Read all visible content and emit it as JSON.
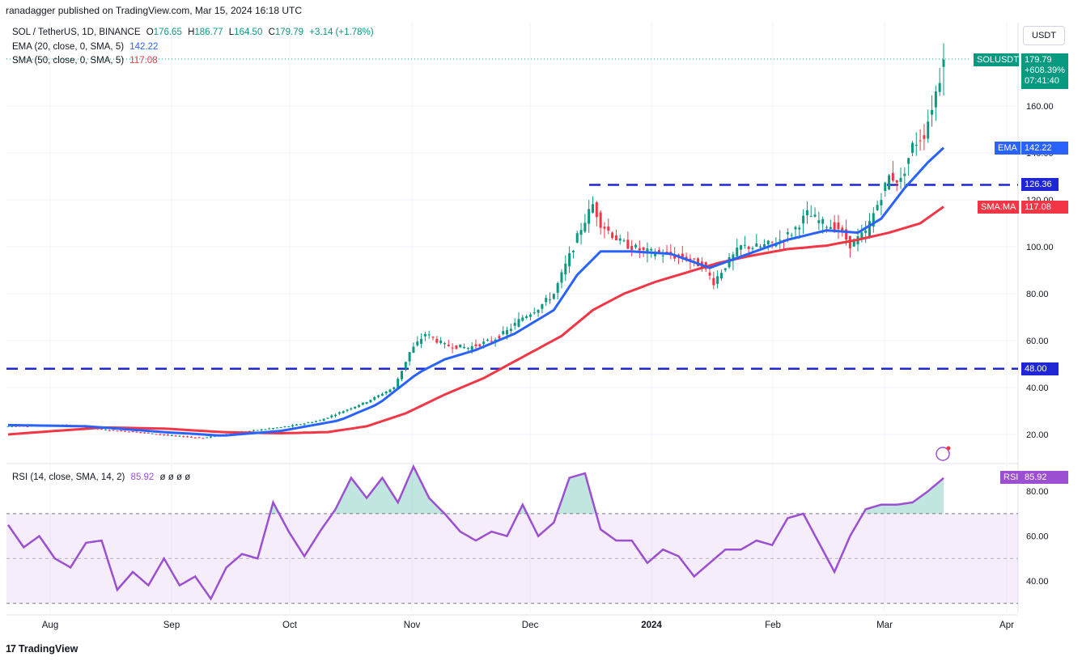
{
  "header": {
    "published": "ranadagger published on TradingView.com, Mar 15, 2024 16:18 UTC"
  },
  "legend": {
    "symbol": "SOL / TetherUS, 1D, BINANCE",
    "ohlc": {
      "O": "176.65",
      "H": "186.77",
      "L": "164.50",
      "C": "179.79",
      "chg": "+3.14 (+1.78%)"
    },
    "ema_label": "EMA (20, close, 0, SMA, 5)",
    "ema_value": "142.22",
    "sma_label": "SMA (50, close, 0, SMA, 5)",
    "sma_value": "117.08",
    "rsi_label": "RSI (14, close, SMA, 14, 2)",
    "rsi_value": "85.92",
    "rsi_extra": "ø ø ø ø"
  },
  "unit_button": "USDT",
  "footer": {
    "brand": "TradingView",
    "logo_text": "17"
  },
  "price_tags": {
    "symbol": "SOLUSDT",
    "price": "179.79",
    "change": "+608.39%",
    "timer": "07:41:40",
    "ema_tag": "EMA",
    "ema": "142.22",
    "level_high": "126.36",
    "sma_tag": "SMA:MA",
    "sma": "117.08",
    "level_low": "48.00",
    "rsi_tag": "RSI",
    "rsi": "85.92"
  },
  "colors": {
    "up": "#089981",
    "down": "#f23645",
    "ema": "#2962ff",
    "sma": "#f23645",
    "rsi": "#9c4fd0",
    "level": "#1f26d6"
  },
  "chart_data": {
    "type": "candlestick",
    "x_ticks": [
      "Aug",
      "Sep",
      "Oct",
      "Nov",
      "Dec",
      "2024",
      "Feb",
      "Mar",
      "Apr"
    ],
    "y_ticks": [
      20,
      40,
      60,
      80,
      100,
      120,
      140,
      160
    ],
    "y_tick_labels": [
      "20.00",
      "40.00",
      "60.00",
      "80.00",
      "100.00",
      "120.00",
      "140.00",
      "160.00"
    ],
    "ylim": [
      13,
      195
    ],
    "levels": [
      126.36,
      48.0
    ],
    "price_path": [
      [
        0,
        23.5
      ],
      [
        15,
        24
      ],
      [
        25,
        22
      ],
      [
        33,
        21
      ],
      [
        42,
        19.5
      ],
      [
        50,
        18.5
      ],
      [
        55,
        20
      ],
      [
        62,
        21.5
      ],
      [
        72,
        23.5
      ],
      [
        80,
        26
      ],
      [
        86,
        30
      ],
      [
        92,
        34
      ],
      [
        99,
        40
      ],
      [
        103,
        55
      ],
      [
        107,
        63
      ],
      [
        112,
        58
      ],
      [
        118,
        57
      ],
      [
        124,
        60
      ],
      [
        128,
        64
      ],
      [
        132,
        70
      ],
      [
        136,
        74
      ],
      [
        140,
        80
      ],
      [
        143,
        92
      ],
      [
        147,
        108
      ],
      [
        150,
        118
      ],
      [
        152,
        110
      ],
      [
        157,
        102
      ],
      [
        163,
        98
      ],
      [
        168,
        97
      ],
      [
        174,
        95
      ],
      [
        178,
        92
      ],
      [
        181,
        85
      ],
      [
        184,
        92
      ],
      [
        188,
        100
      ],
      [
        193,
        100
      ],
      [
        197,
        102
      ],
      [
        201,
        106
      ],
      [
        205,
        114
      ],
      [
        209,
        110
      ],
      [
        213,
        108
      ],
      [
        216,
        101
      ],
      [
        220,
        106
      ],
      [
        223,
        118
      ],
      [
        226,
        130
      ],
      [
        229,
        128
      ],
      [
        232,
        143
      ],
      [
        235,
        148
      ],
      [
        237,
        160
      ],
      [
        239,
        172
      ],
      [
        240,
        179.79
      ]
    ],
    "ema_path": [
      [
        0,
        24
      ],
      [
        20,
        23.5
      ],
      [
        40,
        21
      ],
      [
        55,
        19.5
      ],
      [
        70,
        21.5
      ],
      [
        85,
        26
      ],
      [
        95,
        33
      ],
      [
        105,
        46
      ],
      [
        112,
        52
      ],
      [
        120,
        56
      ],
      [
        130,
        63
      ],
      [
        140,
        73
      ],
      [
        146,
        88
      ],
      [
        152,
        98
      ],
      [
        160,
        98
      ],
      [
        170,
        97
      ],
      [
        180,
        91
      ],
      [
        190,
        97
      ],
      [
        200,
        103
      ],
      [
        210,
        107
      ],
      [
        218,
        106
      ],
      [
        224,
        112
      ],
      [
        230,
        125
      ],
      [
        236,
        136
      ],
      [
        240,
        142.22
      ]
    ],
    "sma_path": [
      [
        0,
        20
      ],
      [
        12,
        21.5
      ],
      [
        25,
        23
      ],
      [
        40,
        22.5
      ],
      [
        55,
        21
      ],
      [
        70,
        20.5
      ],
      [
        82,
        21
      ],
      [
        92,
        23.5
      ],
      [
        102,
        29
      ],
      [
        112,
        37
      ],
      [
        122,
        44
      ],
      [
        132,
        53
      ],
      [
        142,
        62
      ],
      [
        150,
        73
      ],
      [
        158,
        80
      ],
      [
        166,
        85
      ],
      [
        174,
        89
      ],
      [
        182,
        93
      ],
      [
        190,
        96
      ],
      [
        200,
        99
      ],
      [
        210,
        100.5
      ],
      [
        218,
        103
      ],
      [
        226,
        106
      ],
      [
        234,
        110
      ],
      [
        240,
        117.08
      ]
    ],
    "rsi_path": [
      [
        0,
        65
      ],
      [
        4,
        55
      ],
      [
        8,
        60
      ],
      [
        12,
        50
      ],
      [
        16,
        46
      ],
      [
        20,
        57
      ],
      [
        24,
        58
      ],
      [
        28,
        36
      ],
      [
        32,
        44
      ],
      [
        36,
        38
      ],
      [
        40,
        50
      ],
      [
        44,
        38
      ],
      [
        48,
        42
      ],
      [
        52,
        32
      ],
      [
        56,
        46
      ],
      [
        60,
        52
      ],
      [
        64,
        50
      ],
      [
        68,
        75
      ],
      [
        72,
        62
      ],
      [
        76,
        51
      ],
      [
        80,
        62
      ],
      [
        84,
        72
      ],
      [
        88,
        86
      ],
      [
        92,
        77
      ],
      [
        96,
        86
      ],
      [
        100,
        75
      ],
      [
        104,
        91
      ],
      [
        108,
        77
      ],
      [
        112,
        70
      ],
      [
        116,
        62
      ],
      [
        120,
        58
      ],
      [
        124,
        62
      ],
      [
        128,
        60
      ],
      [
        132,
        74
      ],
      [
        136,
        60
      ],
      [
        140,
        66
      ],
      [
        144,
        86
      ],
      [
        148,
        88
      ],
      [
        152,
        63
      ],
      [
        156,
        58
      ],
      [
        160,
        58
      ],
      [
        164,
        48
      ],
      [
        168,
        54
      ],
      [
        172,
        51
      ],
      [
        176,
        42
      ],
      [
        180,
        48
      ],
      [
        184,
        54
      ],
      [
        188,
        54
      ],
      [
        192,
        58
      ],
      [
        196,
        56
      ],
      [
        200,
        68
      ],
      [
        204,
        70
      ],
      [
        208,
        57
      ],
      [
        212,
        44
      ],
      [
        216,
        60
      ],
      [
        220,
        72
      ],
      [
        224,
        74
      ],
      [
        228,
        74
      ],
      [
        232,
        75
      ],
      [
        236,
        80
      ],
      [
        240,
        85.92
      ]
    ],
    "rsi_ticks": [
      40,
      60,
      80
    ],
    "rsi_tick_labels": [
      "40.00",
      "60.00",
      "80.00"
    ],
    "rsi_band": [
      30,
      70
    ],
    "rsi_ylim": [
      20,
      95
    ]
  }
}
